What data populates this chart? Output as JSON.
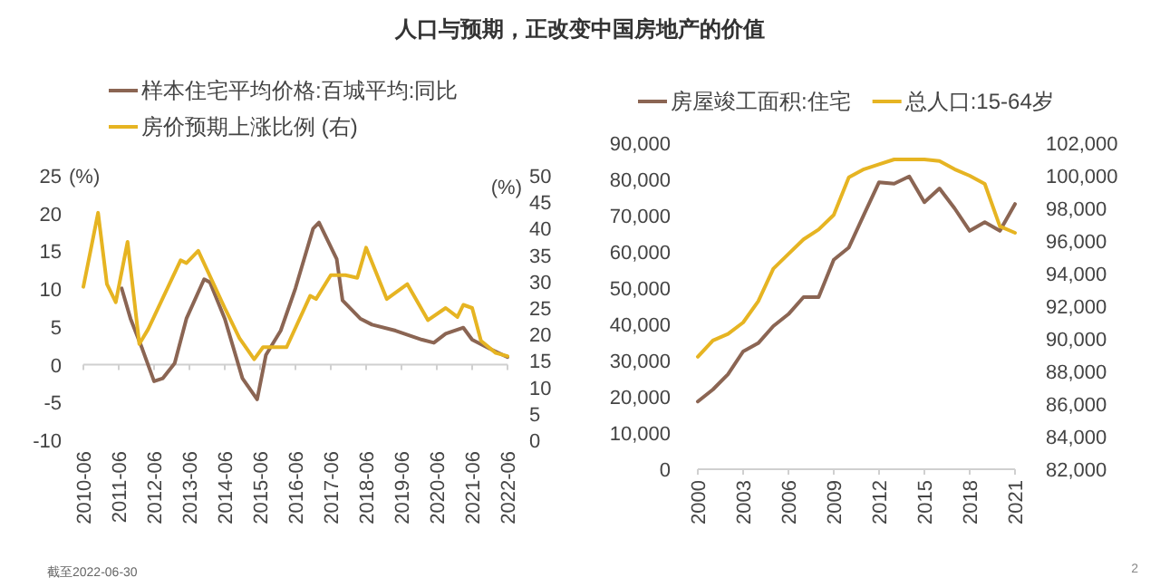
{
  "chart_data": [
    {
      "type": "line",
      "title": "人口与预期，正改变中国房地产的价值",
      "ylabel": "(%)",
      "y2label": "(%)",
      "legend": "top",
      "xlim": [
        "2010-06",
        "2022-06"
      ],
      "xticks": [
        "2010-06",
        "2011-06",
        "2012-06",
        "2013-06",
        "2014-06",
        "2015-06",
        "2016-06",
        "2017-06",
        "2018-06",
        "2019-06",
        "2020-06",
        "2021-06",
        "2022-06"
      ],
      "ylim": [
        -10,
        25
      ],
      "yticks": [
        -10,
        -5,
        0,
        5,
        10,
        15,
        20,
        25
      ],
      "y2lim": [
        0,
        50
      ],
      "y2ticks": [
        0,
        5,
        10,
        15,
        20,
        25,
        30,
        35,
        40,
        45,
        50
      ],
      "annotations": [
        "截至2022-06-30"
      ],
      "series": [
        {
          "name": "样本住宅平均价格:百城平均:同比",
          "color": "#8b6553",
          "x": [
            "2011-07",
            "2011-10",
            "2012-02",
            "2012-06",
            "2012-09",
            "2013-01",
            "2013-05",
            "2013-11",
            "2014-01",
            "2014-06",
            "2014-12",
            "2015-05",
            "2015-08",
            "2016-01",
            "2016-06",
            "2016-12",
            "2017-02",
            "2017-08",
            "2017-10",
            "2018-04",
            "2018-08",
            "2019-04",
            "2020-01",
            "2020-05",
            "2020-09",
            "2021-03",
            "2021-06",
            "2021-12",
            "2022-06"
          ],
          "values": [
            10.1,
            6.1,
            2.1,
            -2.2,
            -1.8,
            0.2,
            6.1,
            11.3,
            10.9,
            6.1,
            -1.8,
            -4.6,
            1.3,
            4.5,
            10.1,
            18.0,
            18.8,
            14.0,
            8.5,
            6.1,
            5.3,
            4.5,
            3.3,
            2.9,
            4.1,
            4.9,
            3.3,
            2.1,
            1.0
          ]
        },
        {
          "name": "房价预期上涨比例 (右)",
          "color": "#e6b422",
          "axis": "y2",
          "x": [
            "2010-06",
            "2010-11",
            "2011-02",
            "2011-05",
            "2011-09",
            "2012-01",
            "2012-04",
            "2013-03",
            "2013-05",
            "2013-09",
            "2014-06",
            "2014-11",
            "2015-04",
            "2015-07",
            "2016-03",
            "2016-11",
            "2017-01",
            "2017-06",
            "2017-11",
            "2018-03",
            "2018-06",
            "2019-01",
            "2019-08",
            "2020-03",
            "2020-09",
            "2021-01",
            "2021-03",
            "2021-06",
            "2021-09",
            "2022-02",
            "2022-06"
          ],
          "values": [
            29.0,
            43.0,
            29.5,
            26.1,
            37.5,
            18.2,
            21.0,
            34.0,
            33.5,
            35.8,
            25.0,
            19.3,
            15.3,
            17.6,
            17.6,
            27.3,
            26.7,
            31.2,
            31.2,
            30.7,
            36.4,
            26.7,
            29.5,
            22.7,
            25.0,
            23.3,
            25.6,
            25.0,
            18.8,
            16.5,
            15.9
          ]
        }
      ]
    },
    {
      "type": "line",
      "legend": "top",
      "xlim": [
        2000,
        2021
      ],
      "xticks": [
        2000,
        2003,
        2006,
        2009,
        2012,
        2015,
        2018,
        2021
      ],
      "ylim": [
        0,
        90000
      ],
      "yticks": [
        {
          "value": 0,
          "label": "0"
        },
        {
          "value": 10000,
          "label": "10,000"
        },
        {
          "value": 20000,
          "label": "20,000"
        },
        {
          "value": 30000,
          "label": "30,000"
        },
        {
          "value": 40000,
          "label": "40,000"
        },
        {
          "value": 50000,
          "label": "50,000"
        },
        {
          "value": 60000,
          "label": "60,000"
        },
        {
          "value": 70000,
          "label": "70,000"
        },
        {
          "value": 80000,
          "label": "80,000"
        },
        {
          "value": 90000,
          "label": "90,000"
        }
      ],
      "y2lim": [
        82000,
        102000
      ],
      "y2ticks": [
        {
          "value": 82000,
          "label": "82,000"
        },
        {
          "value": 84000,
          "label": "84,000"
        },
        {
          "value": 86000,
          "label": "86,000"
        },
        {
          "value": 88000,
          "label": "88,000"
        },
        {
          "value": 90000,
          "label": "90,000"
        },
        {
          "value": 92000,
          "label": "92,000"
        },
        {
          "value": 94000,
          "label": "94,000"
        },
        {
          "value": 96000,
          "label": "96,000"
        },
        {
          "value": 98000,
          "label": "98,000"
        },
        {
          "value": 100000,
          "label": "100,000"
        },
        {
          "value": 102000,
          "label": "102,000"
        }
      ],
      "annotations": [
        "2"
      ],
      "series": [
        {
          "name": "房屋竣工面积:住宅",
          "color": "#8b6553",
          "x": [
            2000,
            2001,
            2002,
            2003,
            2004,
            2005,
            2006,
            2007,
            2008,
            2009,
            2010,
            2011,
            2012,
            2013,
            2014,
            2015,
            2016,
            2017,
            2018,
            2019,
            2020,
            2021
          ],
          "values": [
            18700,
            22000,
            26200,
            32500,
            34800,
            39500,
            42800,
            47500,
            47500,
            57800,
            61200,
            70300,
            79200,
            78800,
            80800,
            73700,
            77500,
            72000,
            65800,
            68200,
            65800,
            73200
          ]
        },
        {
          "name": "总人口:15-64岁",
          "color": "#e6b422",
          "axis": "y2",
          "x": [
            2000,
            2001,
            2002,
            2003,
            2004,
            2005,
            2006,
            2007,
            2008,
            2009,
            2010,
            2011,
            2012,
            2013,
            2014,
            2015,
            2016,
            2017,
            2018,
            2019,
            2020,
            2021
          ],
          "values": [
            88900,
            89900,
            90300,
            91000,
            92300,
            94300,
            95200,
            96100,
            96700,
            97600,
            99900,
            100400,
            100700,
            101000,
            101000,
            101000,
            100900,
            100400,
            100000,
            99500,
            96900,
            96500
          ]
        }
      ]
    }
  ]
}
